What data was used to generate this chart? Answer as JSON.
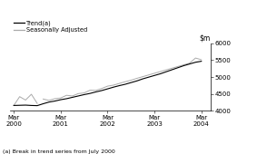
{
  "footnote": "(a) Break in trend series from July 2000",
  "ylim": [
    4000,
    6000
  ],
  "yticks": [
    4000,
    4500,
    5000,
    5500,
    6000
  ],
  "xtick_labels": [
    "Mar\n2000",
    "Mar\n2001",
    "Mar\n2002",
    "Mar\n2003",
    "Mar\n2004"
  ],
  "xtick_positions": [
    0,
    4,
    8,
    12,
    16
  ],
  "legend_labels": [
    "Trend(a)",
    "Seasonally Adjusted"
  ],
  "trend_color": "#000000",
  "sa_color": "#aaaaaa",
  "trend_x": [
    0,
    0.5,
    1,
    1.5,
    2,
    2.5,
    3,
    3.5,
    4,
    4.5,
    5,
    5.5,
    6,
    6.5,
    7,
    7.5,
    8,
    8.5,
    9,
    9.5,
    10,
    10.5,
    11,
    11.5,
    12,
    12.5,
    13,
    13.5,
    14,
    14.5,
    15,
    15.5,
    16
  ],
  "trend_y": [
    4160,
    4165,
    4170,
    4160,
    4155,
    4210,
    4260,
    4290,
    4330,
    4360,
    4400,
    4440,
    4480,
    4515,
    4560,
    4600,
    4650,
    4700,
    4745,
    4785,
    4835,
    4885,
    4945,
    4995,
    5045,
    5095,
    5155,
    5215,
    5275,
    5335,
    5385,
    5435,
    5465
  ],
  "sa_x_pre": [
    0,
    0.5,
    1,
    1.5,
    2
  ],
  "sa_y_pre": [
    4160,
    4420,
    4320,
    4490,
    4220
  ],
  "sa_x_post": [
    2.5,
    3,
    3.5,
    4,
    4.5,
    5,
    5.5,
    6,
    6.5,
    7,
    7.5,
    8,
    8.5,
    9,
    9.5,
    10,
    10.5,
    11,
    11.5,
    12,
    12.5,
    13,
    13.5,
    14,
    14.5,
    15,
    15.5,
    16
  ],
  "sa_y_post": [
    4350,
    4310,
    4360,
    4380,
    4460,
    4440,
    4510,
    4530,
    4610,
    4605,
    4660,
    4730,
    4760,
    4810,
    4860,
    4905,
    4960,
    5010,
    5060,
    5110,
    5160,
    5210,
    5260,
    5310,
    5360,
    5410,
    5560,
    5510
  ],
  "background_color": "#ffffff"
}
